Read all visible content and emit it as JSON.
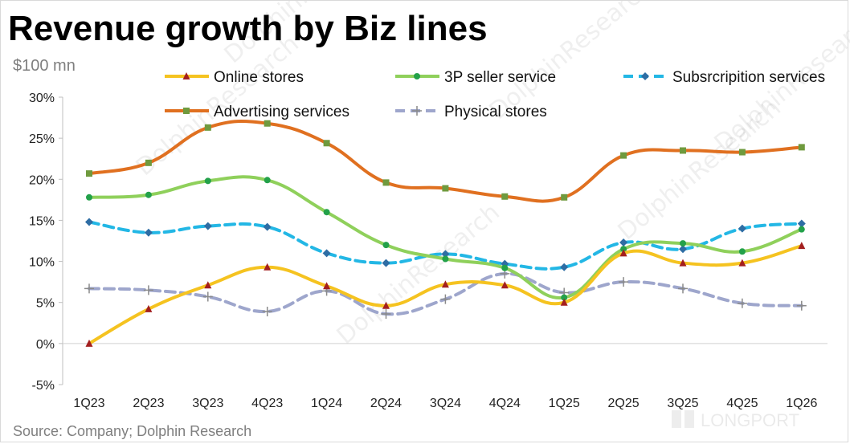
{
  "title": "Revenue growth by Biz lines",
  "unit": "$100 mn",
  "source": "Source: Company; Dolphin Research",
  "watermark_text": "DolphinResearch",
  "brand_logo": "LONGPORT",
  "chart_data": {
    "type": "line",
    "categories": [
      "1Q23",
      "2Q23",
      "3Q23",
      "4Q23",
      "1Q24",
      "2Q24",
      "3Q24",
      "4Q24",
      "1Q25",
      "2Q25",
      "3Q25",
      "4Q25",
      "1Q26"
    ],
    "ylim": [
      -5,
      30
    ],
    "yticks": [
      -5,
      0,
      5,
      10,
      15,
      20,
      25,
      30
    ],
    "ytick_labels": [
      "-5%",
      "0%",
      "5%",
      "10%",
      "15%",
      "20%",
      "25%",
      "30%"
    ],
    "legend_position": "top",
    "grid": false,
    "series": [
      {
        "name": "Online stores",
        "color": "#f5c320",
        "marker": "triangle",
        "marker_color": "#a31f1f",
        "dash": "solid",
        "values": [
          0,
          4.2,
          7.1,
          9.3,
          7.0,
          4.6,
          7.2,
          7.1,
          5.0,
          11.0,
          9.8,
          9.8,
          11.9
        ]
      },
      {
        "name": "3P seller service",
        "color": "#8fd05b",
        "marker": "circle",
        "marker_color": "#23a14a",
        "dash": "solid",
        "values": [
          17.8,
          18.1,
          19.8,
          19.9,
          16.0,
          12.0,
          10.3,
          9.2,
          5.6,
          11.5,
          12.2,
          11.2,
          13.9
        ]
      },
      {
        "name": "Subsrcripition services",
        "color": "#23b7e5",
        "marker": "diamond",
        "marker_color": "#2e6da4",
        "dash": "dashed",
        "values": [
          14.8,
          13.5,
          14.3,
          14.2,
          11.0,
          9.8,
          10.9,
          9.7,
          9.3,
          12.3,
          11.5,
          14.0,
          14.6
        ]
      },
      {
        "name": "Advertising services",
        "color": "#e07020",
        "marker": "square",
        "marker_color": "#6f9a3e",
        "dash": "solid",
        "values": [
          20.7,
          22.0,
          26.3,
          26.8,
          24.4,
          19.6,
          18.9,
          17.9,
          17.8,
          22.9,
          23.5,
          23.3,
          23.9
        ]
      },
      {
        "name": "Physical stores",
        "color": "#9ea6cc",
        "marker": "plus",
        "marker_color": "#8a8a8a",
        "dash": "dashed",
        "values": [
          6.7,
          6.5,
          5.7,
          3.9,
          6.4,
          3.6,
          5.4,
          8.5,
          6.2,
          7.5,
          6.7,
          4.9,
          4.6
        ]
      }
    ]
  }
}
